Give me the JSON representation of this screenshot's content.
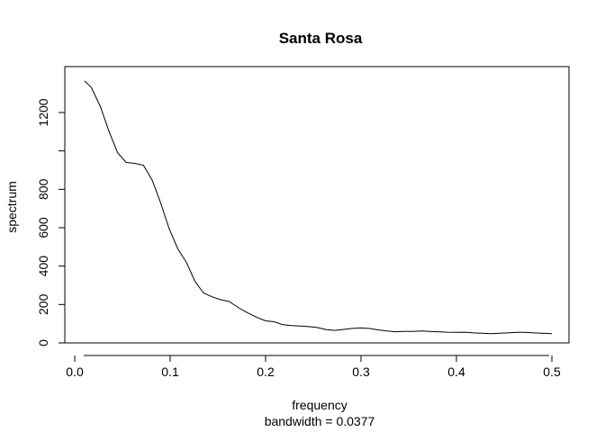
{
  "chart_data": {
    "type": "line",
    "title": "Santa Rosa",
    "xlabel": "frequency",
    "sublabel": "bandwidth = 0.0377",
    "ylabel": "spectrum",
    "xlim": [
      0,
      0.5
    ],
    "ylim": [
      0,
      1350
    ],
    "xticks": [
      {
        "value": 0.0,
        "label": "0.0"
      },
      {
        "value": 0.1,
        "label": "0.1"
      },
      {
        "value": 0.2,
        "label": "0.2"
      },
      {
        "value": 0.3,
        "label": "0.3"
      },
      {
        "value": 0.4,
        "label": "0.4"
      },
      {
        "value": 0.5,
        "label": "0.5"
      }
    ],
    "yticks": [
      {
        "value": 0,
        "label": "0"
      },
      {
        "value": 200,
        "label": "200"
      },
      {
        "value": 400,
        "label": "400"
      },
      {
        "value": 600,
        "label": "600"
      },
      {
        "value": 800,
        "label": "800"
      },
      {
        "value": 1000,
        "label": ""
      },
      {
        "value": 1200,
        "label": "1200"
      }
    ],
    "grid": false,
    "series": [
      {
        "color": "#000000",
        "x": [
          0.0102,
          0.0175,
          0.027,
          0.036,
          0.045,
          0.054,
          0.063,
          0.072,
          0.081,
          0.09,
          0.099,
          0.108,
          0.117,
          0.126,
          0.135,
          0.144,
          0.153,
          0.162,
          0.171,
          0.18,
          0.19,
          0.2,
          0.209,
          0.218,
          0.227,
          0.236,
          0.245,
          0.254,
          0.263,
          0.272,
          0.281,
          0.29,
          0.3,
          0.309,
          0.318,
          0.327,
          0.336,
          0.345,
          0.354,
          0.363,
          0.372,
          0.381,
          0.39,
          0.4,
          0.409,
          0.418,
          0.427,
          0.436,
          0.445,
          0.454,
          0.463,
          0.472,
          0.481,
          0.49,
          0.5
        ],
        "values": [
          1365,
          1330,
          1230,
          1100,
          990,
          940,
          935,
          925,
          850,
          730,
          595,
          490,
          420,
          320,
          260,
          240,
          225,
          215,
          185,
          160,
          135,
          115,
          110,
          95,
          90,
          88,
          85,
          80,
          70,
          65,
          70,
          75,
          78,
          75,
          68,
          62,
          58,
          60,
          60,
          62,
          60,
          58,
          56,
          55,
          56,
          52,
          50,
          48,
          50,
          52,
          55,
          55,
          52,
          50,
          48
        ]
      }
    ]
  }
}
